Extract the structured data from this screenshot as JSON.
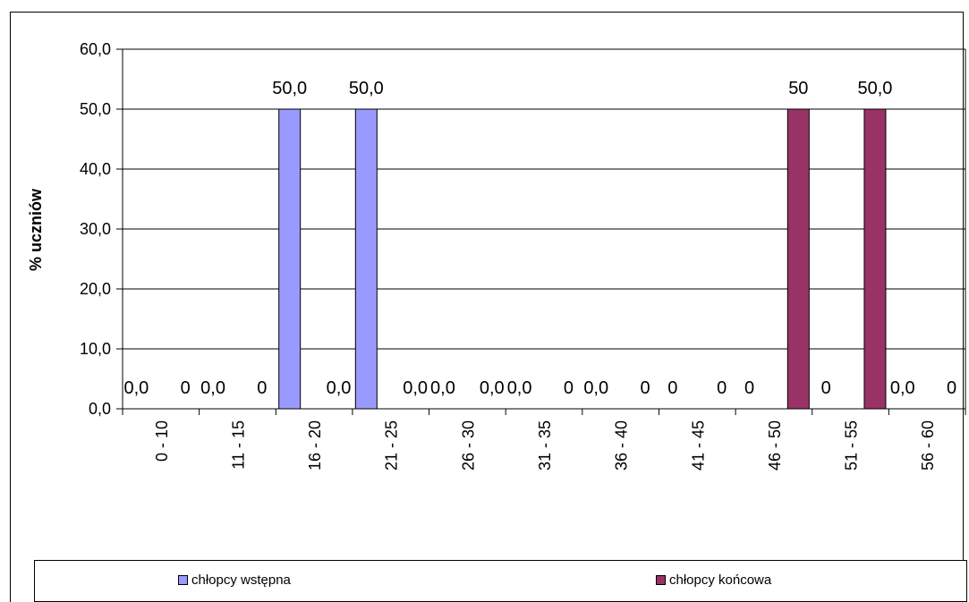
{
  "chart_data": {
    "type": "bar",
    "title": "",
    "ylabel": "% uczniów",
    "xlabel": "",
    "ylim": [
      0,
      60
    ],
    "yticks": [
      "0,0",
      "10,0",
      "20,0",
      "30,0",
      "40,0",
      "50,0",
      "60,0"
    ],
    "grid": true,
    "legend_position": "bottom",
    "categories": [
      "0 - 10",
      "11 - 15",
      "16 - 20",
      "21 - 25",
      "26 - 30",
      "31 - 35",
      "36 - 40",
      "41 - 45",
      "46 - 50",
      "51 - 55",
      "56 - 60"
    ],
    "series": [
      {
        "name": "chłopcy wstępna",
        "color": "#9999FF",
        "values": [
          0,
          0,
          50,
          50,
          0,
          0,
          0,
          0,
          0,
          0,
          0
        ],
        "labels": [
          "0,0",
          "0,0",
          "50,0",
          "50,0",
          "0,0",
          "0,0",
          "0,0",
          "0",
          "0",
          "0",
          "0,0"
        ]
      },
      {
        "name": "chłopcy końcowa",
        "color": "#993366",
        "values": [
          0,
          0,
          0,
          0,
          0,
          0,
          0,
          0,
          50,
          50,
          0
        ],
        "labels": [
          "0",
          "0",
          "0,0",
          "0,0",
          "0,0",
          "0",
          "0",
          "0",
          "50",
          "50,0",
          "0"
        ]
      }
    ]
  }
}
